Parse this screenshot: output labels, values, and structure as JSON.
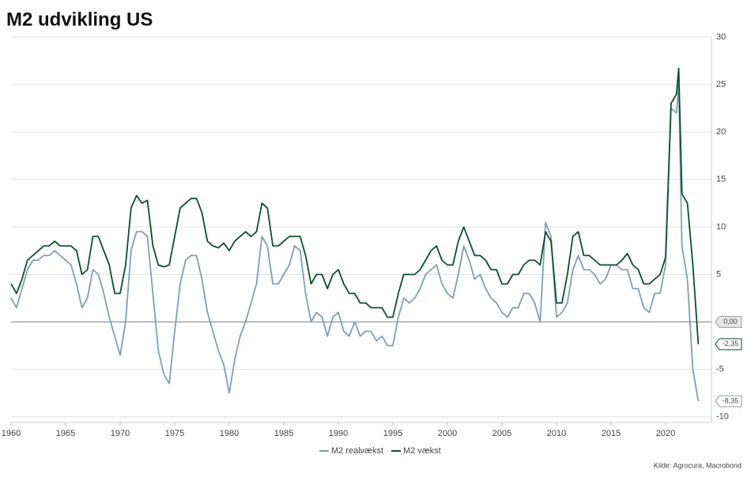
{
  "chart_data": {
    "type": "line",
    "title": "M2 udvikling US",
    "source": "Kilde: Agrocura, Macrobond",
    "x": [
      1960,
      1960.5,
      1961,
      1961.5,
      1962,
      1962.5,
      1963,
      1963.5,
      1964,
      1964.5,
      1965,
      1965.5,
      1966,
      1966.5,
      1967,
      1967.5,
      1968,
      1968.5,
      1969,
      1969.5,
      1970,
      1970.5,
      1971,
      1971.5,
      1972,
      1972.5,
      1973,
      1973.5,
      1974,
      1974.5,
      1975,
      1975.5,
      1976,
      1976.5,
      1977,
      1977.5,
      1978,
      1978.5,
      1979,
      1979.5,
      1980,
      1980.5,
      1981,
      1981.5,
      1982,
      1982.5,
      1983,
      1983.5,
      1984,
      1984.5,
      1985,
      1985.5,
      1986,
      1986.5,
      1987,
      1987.5,
      1988,
      1988.5,
      1989,
      1989.5,
      1990,
      1990.5,
      1991,
      1991.5,
      1992,
      1992.5,
      1993,
      1993.5,
      1994,
      1994.5,
      1995,
      1995.5,
      1996,
      1996.5,
      1997,
      1997.5,
      1998,
      1998.5,
      1999,
      1999.5,
      2000,
      2000.5,
      2001,
      2001.5,
      2002,
      2002.5,
      2003,
      2003.5,
      2004,
      2004.5,
      2005,
      2005.5,
      2006,
      2006.5,
      2007,
      2007.5,
      2008,
      2008.5,
      2009,
      2009.5,
      2010,
      2010.5,
      2011,
      2011.5,
      2012,
      2012.5,
      2013,
      2013.5,
      2014,
      2014.5,
      2015,
      2015.5,
      2016,
      2016.5,
      2017,
      2017.5,
      2018,
      2018.5,
      2019,
      2019.5,
      2020,
      2020.5,
      2021,
      2021.2,
      2021.5,
      2022,
      2022.5,
      2023
    ],
    "series": [
      {
        "name": "M2 realvækst",
        "color": "#7f9fb5",
        "values": [
          2.5,
          1.5,
          3.5,
          5.5,
          6.5,
          6.5,
          7,
          7,
          7.5,
          7,
          6.5,
          6,
          4,
          1.5,
          2.5,
          5.5,
          5,
          3,
          0.5,
          -1.5,
          -3.5,
          0,
          7.5,
          9.5,
          9.5,
          9,
          3,
          -3,
          -5.5,
          -6.5,
          -1,
          4,
          6.5,
          7,
          7,
          4.5,
          1,
          -1,
          -3,
          -4.5,
          -7.5,
          -4,
          -1.5,
          0,
          2,
          4,
          9,
          8,
          4,
          4,
          5,
          6,
          8,
          7.5,
          3,
          0,
          1,
          0.5,
          -1.5,
          0.5,
          1,
          -1,
          -1.5,
          0,
          -1.5,
          -1,
          -1,
          -2,
          -1.5,
          -2.5,
          -2.5,
          0.5,
          2.5,
          2,
          2.5,
          3.5,
          5,
          5.5,
          6,
          4,
          3,
          2.5,
          5,
          8,
          6.5,
          4.5,
          5,
          3.5,
          2.5,
          2,
          1,
          0.5,
          1.5,
          1.5,
          3,
          3,
          2,
          0,
          10.5,
          9,
          0.5,
          1,
          2,
          5.5,
          7,
          5.5,
          5.5,
          5,
          4,
          4.5,
          6,
          6,
          5.5,
          5.5,
          3.5,
          3.5,
          1.5,
          1,
          3,
          3,
          6,
          22.5,
          22,
          25,
          8,
          4.5,
          -5,
          -8.35
        ]
      },
      {
        "name": "M2 vækst",
        "color": "#0b4f2e",
        "values": [
          4,
          3,
          4.5,
          6.5,
          7,
          7.5,
          8,
          8,
          8.5,
          8,
          8,
          8,
          7.5,
          5,
          5.5,
          9,
          9,
          7.5,
          6,
          3,
          3,
          6,
          12,
          13.3,
          12.5,
          12.8,
          8,
          6,
          5.8,
          6,
          9,
          12,
          12.5,
          13,
          13,
          11.5,
          8.5,
          8,
          7.8,
          8.3,
          7.5,
          8.5,
          9,
          9.5,
          9,
          9.5,
          12.5,
          12,
          8,
          8,
          8.5,
          9,
          9,
          9,
          7,
          4,
          5,
          5,
          3.5,
          5,
          5.5,
          4,
          3,
          3,
          2,
          2,
          1.5,
          1.5,
          1.5,
          0.5,
          0.5,
          3,
          5,
          5,
          5,
          5.5,
          6.5,
          7.5,
          8,
          6.5,
          6,
          6,
          8.5,
          10,
          8.5,
          7,
          7,
          6.5,
          5.5,
          5.5,
          4,
          4,
          5,
          5,
          6,
          6.5,
          6.5,
          6,
          9.5,
          8.5,
          2,
          2,
          5,
          9,
          9.5,
          7,
          7,
          6.5,
          6,
          6,
          6,
          6,
          6.5,
          7.2,
          6,
          5.5,
          4,
          4,
          4.5,
          5,
          6.8,
          23,
          24,
          26.7,
          13.5,
          12.5,
          6,
          -2.35
        ]
      }
    ],
    "annotations": [
      {
        "value": 0,
        "label": "0,00",
        "color": "#999999"
      },
      {
        "value": -2.35,
        "label": "-2,35",
        "color": "#0b4f2e"
      },
      {
        "value": -8.35,
        "label": "-8,35",
        "color": "#7f9fb5"
      }
    ],
    "xlim": [
      1960,
      2024.2
    ],
    "xticks": [
      1960,
      1965,
      1970,
      1975,
      1980,
      1985,
      1990,
      1995,
      2000,
      2005,
      2010,
      2015,
      2020
    ],
    "ylim": [
      -10.6,
      30
    ],
    "yticks": [
      30,
      25,
      20,
      15,
      10,
      5,
      0,
      -5,
      -10
    ],
    "grid": true,
    "legend": "bottom"
  }
}
